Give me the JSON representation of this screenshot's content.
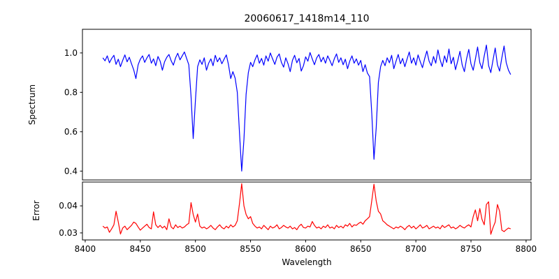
{
  "title": "20060617_1418m14_110",
  "chart_data": [
    {
      "type": "line",
      "panel": "spectrum",
      "ylabel": "Spectrum",
      "xlim": [
        8397.5,
        8804.5
      ],
      "ylim": [
        0.355,
        1.12
      ],
      "yticks": [
        0.4,
        0.6,
        0.8,
        1.0
      ],
      "ytick_labels": [
        "0.4",
        "0.6",
        "0.8",
        "1.0"
      ],
      "grid": false,
      "legend": "none",
      "series": [
        {
          "name": "spectrum",
          "color": "#0000ff",
          "x_start": 8416,
          "x_step": 2,
          "values": [
            0.975,
            0.96,
            0.985,
            0.95,
            0.972,
            0.988,
            0.942,
            0.968,
            0.93,
            0.962,
            0.99,
            0.955,
            0.978,
            0.945,
            0.915,
            0.87,
            0.94,
            0.968,
            0.985,
            0.952,
            0.975,
            0.992,
            0.948,
            0.97,
            0.935,
            0.982,
            0.958,
            0.912,
            0.955,
            0.978,
            0.992,
            0.96,
            0.938,
            0.975,
            0.998,
            0.965,
            0.985,
            1.005,
            0.972,
            0.94,
            0.78,
            0.565,
            0.76,
            0.93,
            0.965,
            0.942,
            0.975,
            0.912,
            0.948,
            0.97,
            0.935,
            0.988,
            0.955,
            0.975,
            0.945,
            0.968,
            0.99,
            0.94,
            0.87,
            0.905,
            0.872,
            0.8,
            0.59,
            0.4,
            0.56,
            0.79,
            0.9,
            0.952,
            0.93,
            0.965,
            0.99,
            0.948,
            0.972,
            0.938,
            0.985,
            0.958,
            1.0,
            0.97,
            0.942,
            0.978,
            0.995,
            0.952,
            0.928,
            0.975,
            0.945,
            0.905,
            0.962,
            0.988,
            0.95,
            0.972,
            0.908,
            0.935,
            0.98,
            0.958,
            1.002,
            0.97,
            0.94,
            0.975,
            0.992,
            0.955,
            0.978,
            0.948,
            0.985,
            0.962,
            0.935,
            0.97,
            0.995,
            0.952,
            0.975,
            0.94,
            0.968,
            0.92,
            0.958,
            0.985,
            0.948,
            0.97,
            0.938,
            0.962,
            0.905,
            0.94,
            0.898,
            0.88,
            0.69,
            0.46,
            0.62,
            0.85,
            0.93,
            0.962,
            0.935,
            0.975,
            0.95,
            0.988,
            0.92,
            0.958,
            0.992,
            0.945,
            0.972,
            0.93,
            0.968,
            1.005,
            0.948,
            0.975,
            0.938,
            0.99,
            0.955,
            0.925,
            0.972,
            1.01,
            0.958,
            0.935,
            0.982,
            0.948,
            1.015,
            0.965,
            0.93,
            0.985,
            0.952,
            1.02,
            0.945,
            0.978,
            0.915,
            0.96,
            1.008,
            0.94,
            0.905,
            0.97,
            1.018,
            0.945,
            0.912,
            0.968,
            1.03,
            0.95,
            0.92,
            0.985,
            1.04,
            0.935,
            0.9,
            0.965,
            1.025,
            0.94,
            0.908,
            0.975,
            1.035,
            0.95,
            0.912,
            0.89
          ]
        }
      ]
    },
    {
      "type": "line",
      "panel": "error",
      "ylabel": "Error",
      "xlabel": "Wavelength",
      "xlim": [
        8397.5,
        8804.5
      ],
      "ylim": [
        0.0274,
        0.0488
      ],
      "yticks": [
        0.03,
        0.04
      ],
      "ytick_labels": [
        "0.03",
        "0.04"
      ],
      "xticks": [
        8400,
        8450,
        8500,
        8550,
        8600,
        8650,
        8700,
        8750,
        8800
      ],
      "xtick_labels": [
        "8400",
        "8450",
        "8500",
        "8550",
        "8600",
        "8650",
        "8700",
        "8750",
        "8800"
      ],
      "grid": false,
      "legend": "none",
      "series": [
        {
          "name": "error",
          "color": "#ff0000",
          "x_start": 8416,
          "x_step": 2,
          "values": [
            0.0325,
            0.0318,
            0.0322,
            0.0302,
            0.0315,
            0.033,
            0.038,
            0.034,
            0.0296,
            0.0318,
            0.0325,
            0.0312,
            0.032,
            0.0328,
            0.034,
            0.0335,
            0.0322,
            0.031,
            0.0318,
            0.0325,
            0.0332,
            0.032,
            0.0315,
            0.0378,
            0.033,
            0.032,
            0.0328,
            0.0318,
            0.0325,
            0.0312,
            0.0352,
            0.0322,
            0.0315,
            0.033,
            0.032,
            0.0325,
            0.0318,
            0.0322,
            0.033,
            0.0335,
            0.0412,
            0.0368,
            0.034,
            0.037,
            0.0325,
            0.0318,
            0.0322,
            0.0315,
            0.032,
            0.0328,
            0.0318,
            0.0312,
            0.0322,
            0.033,
            0.032,
            0.0315,
            0.0325,
            0.0318,
            0.033,
            0.0322,
            0.0328,
            0.0345,
            0.041,
            0.0482,
            0.04,
            0.0368,
            0.0352,
            0.036,
            0.0335,
            0.0325,
            0.0318,
            0.0322,
            0.0315,
            0.0328,
            0.032,
            0.0312,
            0.0325,
            0.0318,
            0.0322,
            0.033,
            0.0315,
            0.032,
            0.0328,
            0.0322,
            0.0318,
            0.0325,
            0.0315,
            0.032,
            0.0312,
            0.0325,
            0.0332,
            0.032,
            0.0318,
            0.0325,
            0.0322,
            0.0342,
            0.0328,
            0.0318,
            0.0322,
            0.0315,
            0.0325,
            0.032,
            0.033,
            0.0318,
            0.0322,
            0.0315,
            0.0328,
            0.032,
            0.0325,
            0.0318,
            0.033,
            0.0325,
            0.0335,
            0.0322,
            0.033,
            0.0328,
            0.0335,
            0.034,
            0.0332,
            0.0345,
            0.0352,
            0.036,
            0.042,
            0.048,
            0.0418,
            0.038,
            0.037,
            0.0345,
            0.0338,
            0.033,
            0.0325,
            0.032,
            0.0315,
            0.0322,
            0.0318,
            0.0325,
            0.032,
            0.0312,
            0.0322,
            0.0328,
            0.0318,
            0.0325,
            0.0315,
            0.0322,
            0.033,
            0.0318,
            0.0322,
            0.0328,
            0.0315,
            0.032,
            0.0325,
            0.0318,
            0.0322,
            0.0315,
            0.0328,
            0.032,
            0.0325,
            0.033,
            0.0318,
            0.0322,
            0.0315,
            0.032,
            0.0328,
            0.0322,
            0.0318,
            0.0325,
            0.033,
            0.0322,
            0.036,
            0.0385,
            0.0345,
            0.039,
            0.035,
            0.033,
            0.0405,
            0.0415,
            0.0295,
            0.032,
            0.034,
            0.0405,
            0.038,
            0.031,
            0.0305,
            0.0312,
            0.0318,
            0.0315
          ]
        }
      ]
    }
  ],
  "colors": {
    "spectrum_line": "#0000ff",
    "error_line": "#ff0000",
    "axes": "#000000",
    "background": "#ffffff"
  }
}
